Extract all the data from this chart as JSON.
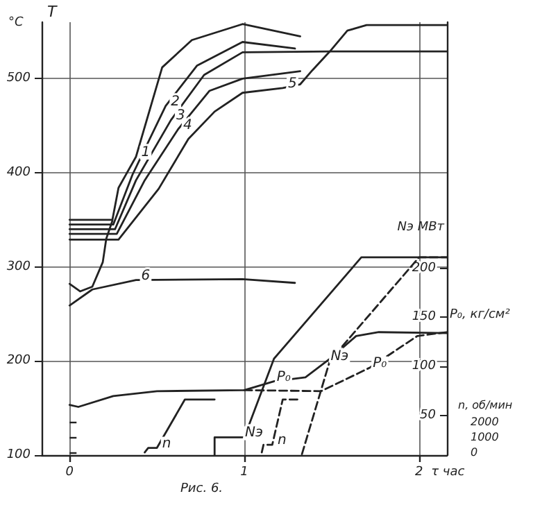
{
  "chart_data": {
    "type": "line",
    "ylabel": "T",
    "xlabel": "τ час",
    "y2label": "Nэ МВт",
    "y3label": "n, об/мин",
    "annotations": [
      "Рис. 6.",
      "°C",
      "P₀, кг/см²"
    ],
    "xlim": [
      -0.16,
      2.16
    ],
    "xticks": [
      0,
      1,
      2
    ],
    "ylim": [
      100,
      560
    ],
    "yticks": [
      100,
      200,
      300,
      400,
      500
    ],
    "y2lim": [
      10,
      450
    ],
    "y2ticks": [
      50,
      100,
      150,
      200
    ],
    "y3lim": [
      -180,
      28450
    ],
    "y3ticks": [
      0,
      1000,
      2000
    ],
    "grid": true,
    "legend": false,
    "marker": "none",
    "series": [
      {
        "name": "1",
        "color": "#222222",
        "line_style": "solid",
        "x": [
          0,
          0.245,
          0.28,
          0.38,
          0.53,
          0.7,
          0.99,
          1.32
        ],
        "values": [
          350,
          350,
          384,
          417,
          512,
          541,
          558,
          545
        ]
      },
      {
        "name": "2",
        "color": "#222222",
        "line_style": "solid",
        "x": [
          0,
          0.25,
          0.36,
          0.55,
          0.73,
          0.99,
          1.29
        ],
        "values": [
          345,
          345,
          398,
          471,
          514,
          539,
          532
        ]
      },
      {
        "name": "3",
        "color": "#222222",
        "line_style": "solid",
        "x": [
          0,
          0.26,
          0.38,
          0.58,
          0.77,
          0.99,
          1.49,
          2.16
        ],
        "values": [
          340,
          340,
          392,
          456,
          504,
          528,
          529,
          529
        ]
      },
      {
        "name": "4",
        "color": "#222222",
        "line_style": "solid",
        "x": [
          0,
          0.27,
          0.43,
          0.62,
          0.8,
          0.99,
          1.32
        ],
        "values": [
          335,
          335,
          392,
          446,
          487,
          500,
          508
        ]
      },
      {
        "name": "5",
        "color": "#222222",
        "line_style": "solid",
        "x": [
          0,
          0.28,
          0.51,
          0.68,
          0.83,
          0.99,
          1.22,
          1.32,
          1.39,
          1.49,
          1.59,
          1.7,
          2.16
        ],
        "values": [
          329,
          329,
          383,
          436,
          465,
          485,
          490,
          494,
          509,
          529,
          551,
          557,
          557
        ]
      },
      {
        "color": "#222222",
        "line_style": "solid",
        "x": [
          0,
          0.06,
          0.13,
          0.19,
          0.21,
          0.245
        ],
        "values": [
          282,
          274,
          279,
          305,
          330,
          349
        ]
      },
      {
        "name": "6",
        "color": "#222222",
        "line_style": "solid",
        "x": [
          0,
          0.13,
          0.38,
          0.99,
          1.29
        ],
        "values": [
          259,
          276,
          286,
          287,
          283
        ]
      },
      {
        "name": "Nэ",
        "color": "#222222",
        "line_style": "solid",
        "axis": "y2",
        "x": [
          0.83,
          0.83,
          1.0,
          1.17,
          1.67,
          2.16
        ],
        "values": [
          10,
          28,
          28,
          108,
          211,
          211
        ]
      },
      {
        "name": "Nэ",
        "color": "#222222",
        "line_style": "dashed",
        "axis": "y2",
        "x": [
          1.33,
          1.49,
          2.0,
          2.16
        ],
        "values": [
          11,
          106,
          211,
          211
        ]
      },
      {
        "name": "P₀",
        "color": "#222222",
        "line_style": "solid",
        "axis": "y2",
        "x": [
          0,
          0.05,
          0.25,
          0.5,
          1.0,
          1.17,
          1.35,
          1.49,
          1.64,
          1.77,
          2.16
        ],
        "values": [
          61,
          59,
          70,
          75,
          76,
          85,
          89,
          108,
          131,
          135,
          134
        ]
      },
      {
        "name": "P₀",
        "color": "#222222",
        "line_style": "dashed",
        "axis": "y2",
        "x": [
          1.0,
          1.44,
          1.72,
          1.99,
          2.16
        ],
        "values": [
          76,
          75,
          99,
          131,
          135
        ]
      },
      {
        "name": "n",
        "color": "#222222",
        "line_style": "solid",
        "axis": "y3",
        "x": [
          0.43,
          0.45,
          0.5,
          0.66,
          0.83
        ],
        "values": [
          0,
          300,
          300,
          3500,
          3500
        ]
      },
      {
        "name": "n",
        "color": "#222222",
        "line_style": "dashed",
        "axis": "y3",
        "x": [
          1.1,
          1.11,
          1.16,
          1.22,
          1.32
        ],
        "values": [
          0,
          500,
          500,
          3500,
          3500
        ]
      }
    ]
  }
}
